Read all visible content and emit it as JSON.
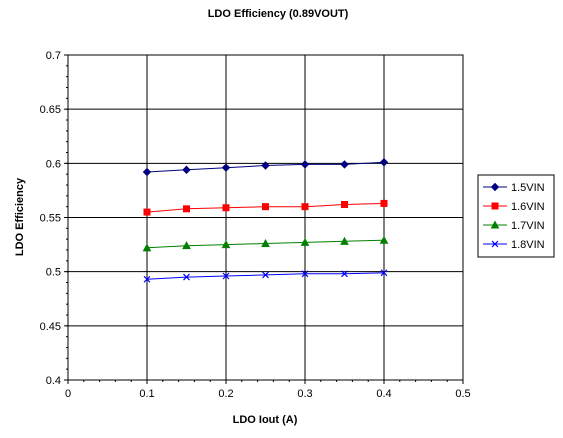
{
  "chart_data": {
    "type": "line",
    "title": "LDO Efficiency (0.89VOUT)",
    "xlabel": "LDO Iout (A)",
    "ylabel": "LDO Efficiency",
    "xlim": [
      0,
      0.5
    ],
    "ylim": [
      0.4,
      0.7
    ],
    "x_ticks": [
      "0",
      "0.1",
      "0.2",
      "0.3",
      "0.4",
      "0.5"
    ],
    "y_ticks": [
      "0.4",
      "0.45",
      "0.5",
      "0.55",
      "0.6",
      "0.65",
      "0.7"
    ],
    "grid": true,
    "legend_position": "right",
    "x": [
      0.1,
      0.15,
      0.2,
      0.25,
      0.3,
      0.35,
      0.4
    ],
    "series": [
      {
        "name": "1.5VIN",
        "color": "#000080",
        "marker": "diamond",
        "values": [
          0.592,
          0.594,
          0.596,
          0.598,
          0.599,
          0.599,
          0.601
        ]
      },
      {
        "name": "1.6VIN",
        "color": "#ff0000",
        "marker": "square",
        "values": [
          0.555,
          0.558,
          0.559,
          0.56,
          0.56,
          0.562,
          0.563
        ]
      },
      {
        "name": "1.7VIN",
        "color": "#008000",
        "marker": "triangle",
        "values": [
          0.522,
          0.524,
          0.525,
          0.526,
          0.527,
          0.528,
          0.529
        ]
      },
      {
        "name": "1.8VIN",
        "color": "#0000ff",
        "marker": "x",
        "values": [
          0.493,
          0.495,
          0.496,
          0.497,
          0.498,
          0.498,
          0.499
        ]
      }
    ]
  }
}
